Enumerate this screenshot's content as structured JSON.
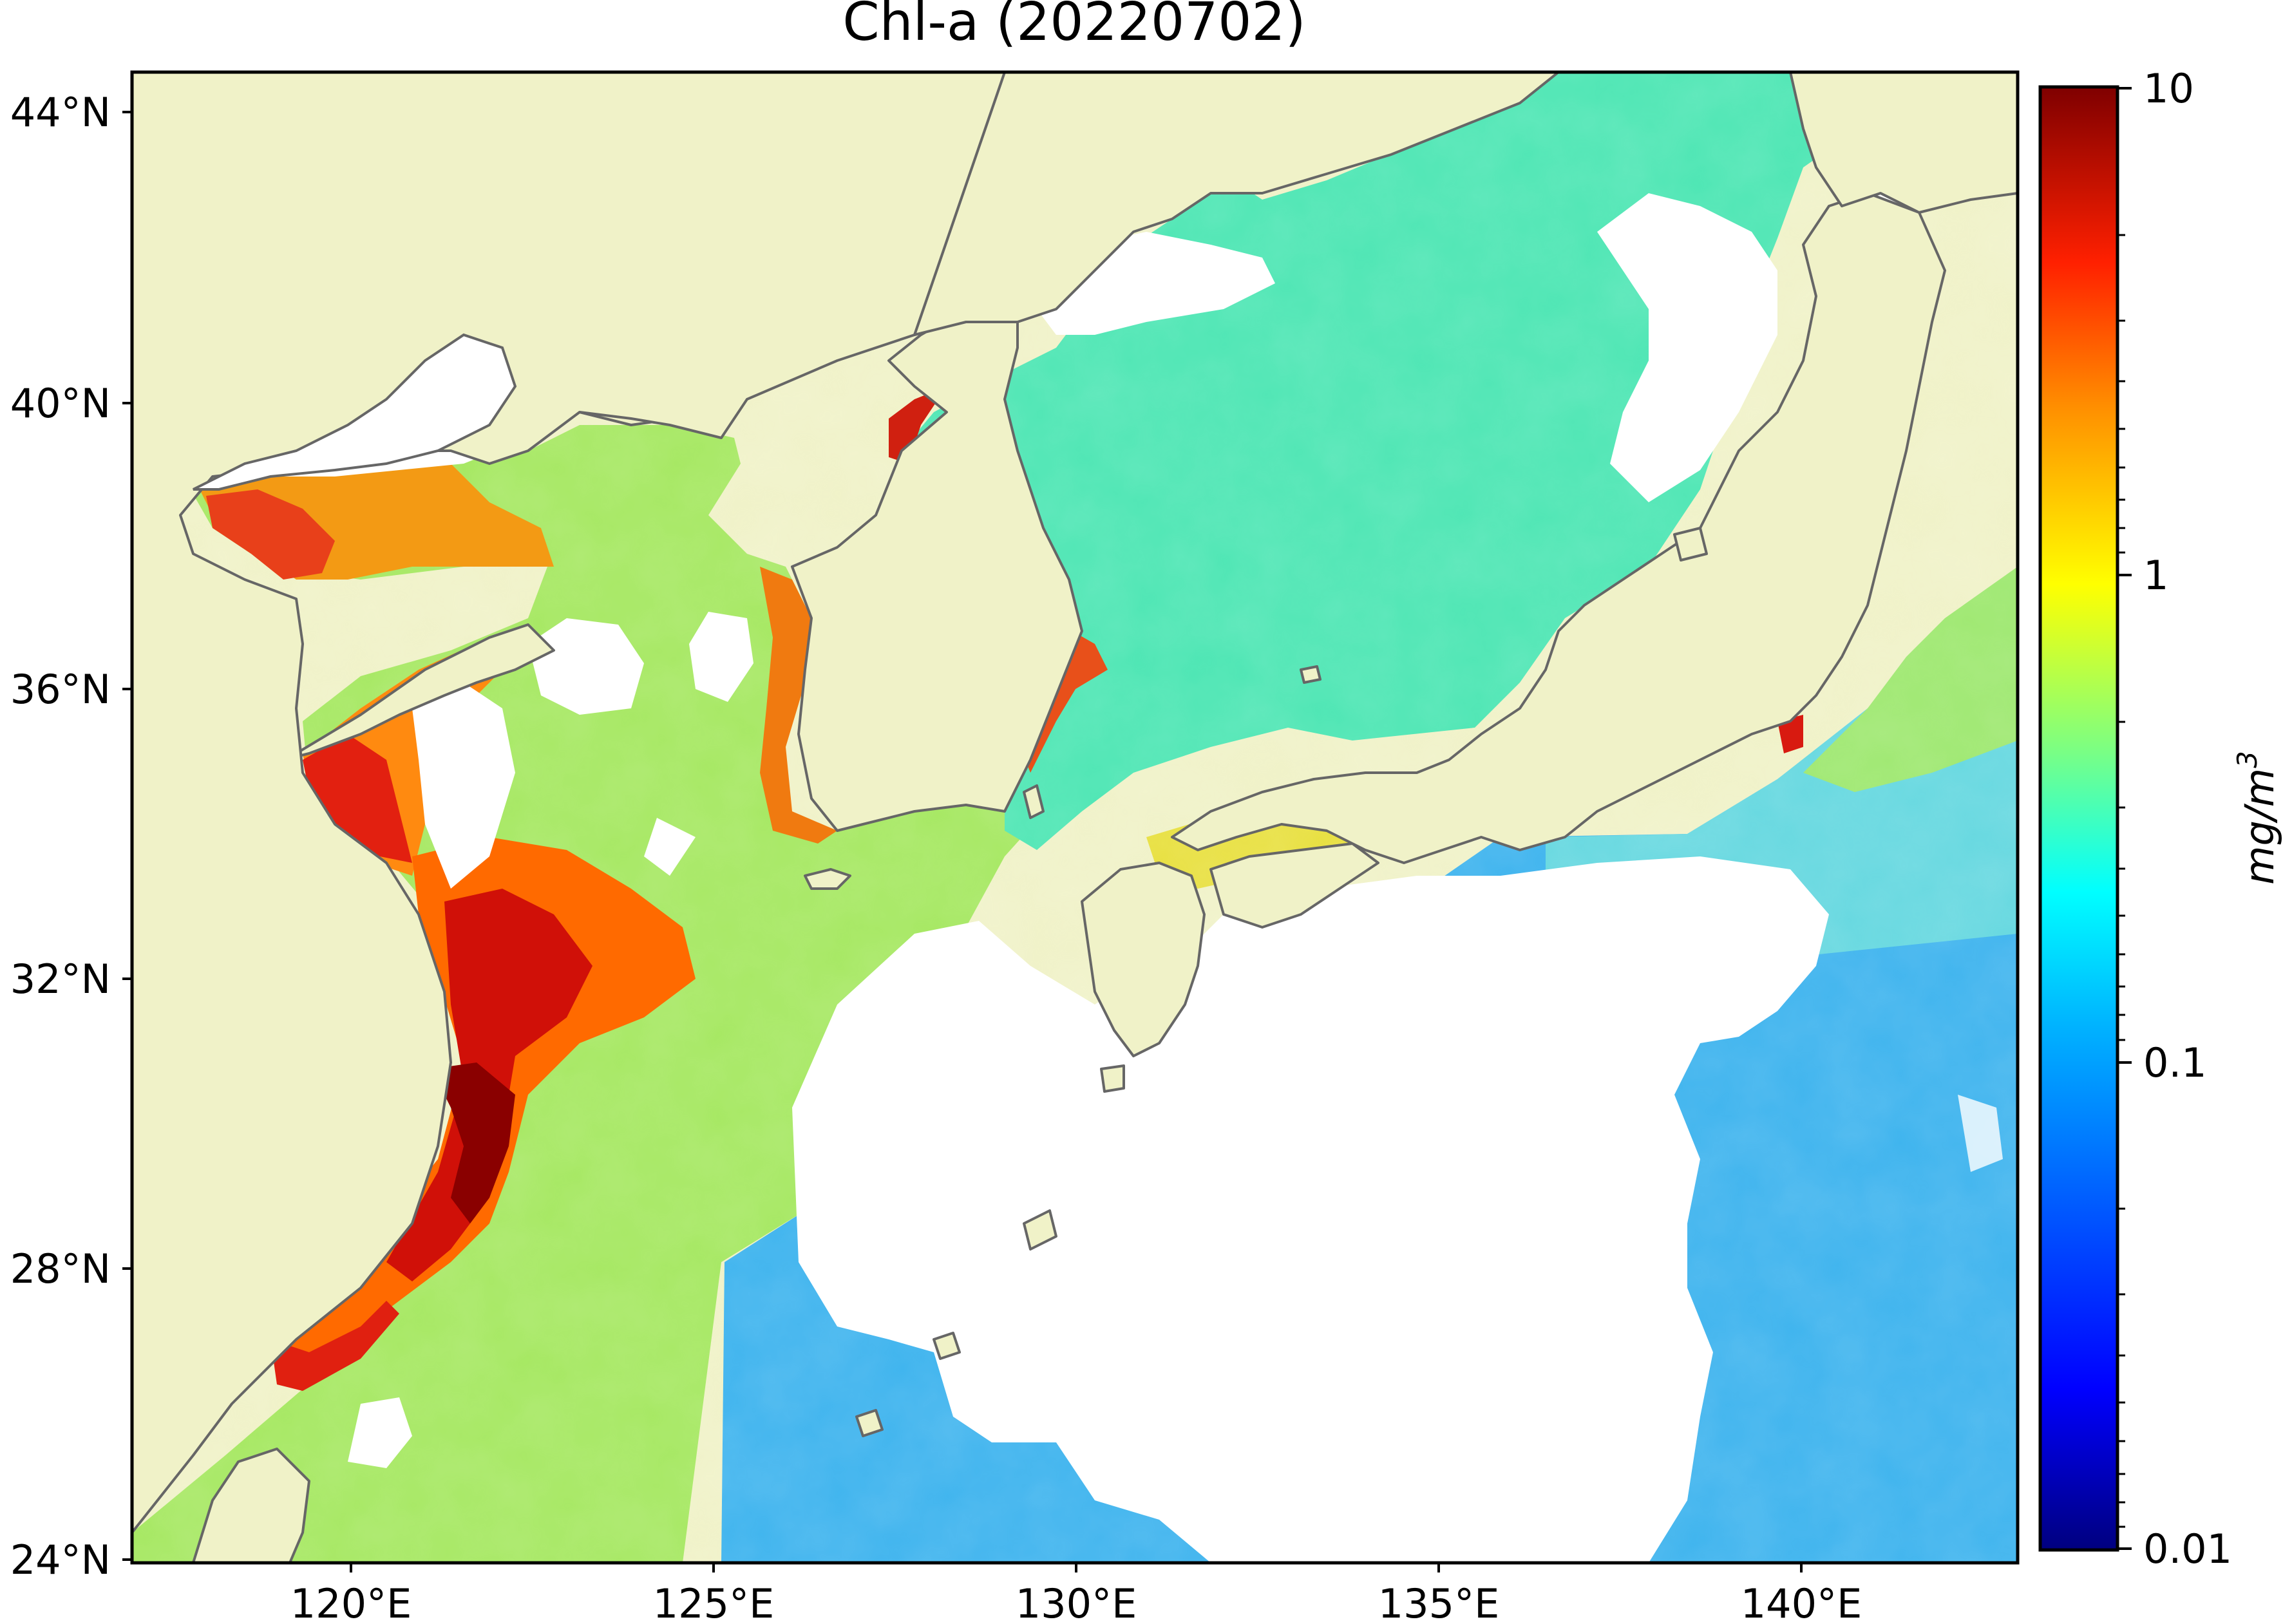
{
  "title": "Chl-a (20220702)",
  "map": {
    "lat_ticks": [
      "44°N",
      "40°N",
      "36°N",
      "32°N",
      "28°N",
      "24°N"
    ],
    "lon_ticks": [
      "120°E",
      "125°E",
      "130°E",
      "135°E",
      "140°E"
    ],
    "extent": {
      "lon_min": 117,
      "lon_max": 143,
      "lat_min": 24,
      "lat_max": 44.5
    },
    "land_color": "#f0f2c8",
    "no_data_color": "#ffffff",
    "coastline_color": "#666666"
  },
  "colorbar": {
    "label": "mg/m",
    "label_superscript": "3",
    "scale": "log",
    "range": [
      0.01,
      10
    ],
    "tick_labels": [
      "10",
      "1",
      "0.1",
      "0.01"
    ],
    "colormap": "jet",
    "colors": [
      "#00007f",
      "#0000ff",
      "#007fff",
      "#00ffff",
      "#7fff7f",
      "#ffff00",
      "#ff7f00",
      "#ff0000",
      "#7f0000"
    ]
  }
}
